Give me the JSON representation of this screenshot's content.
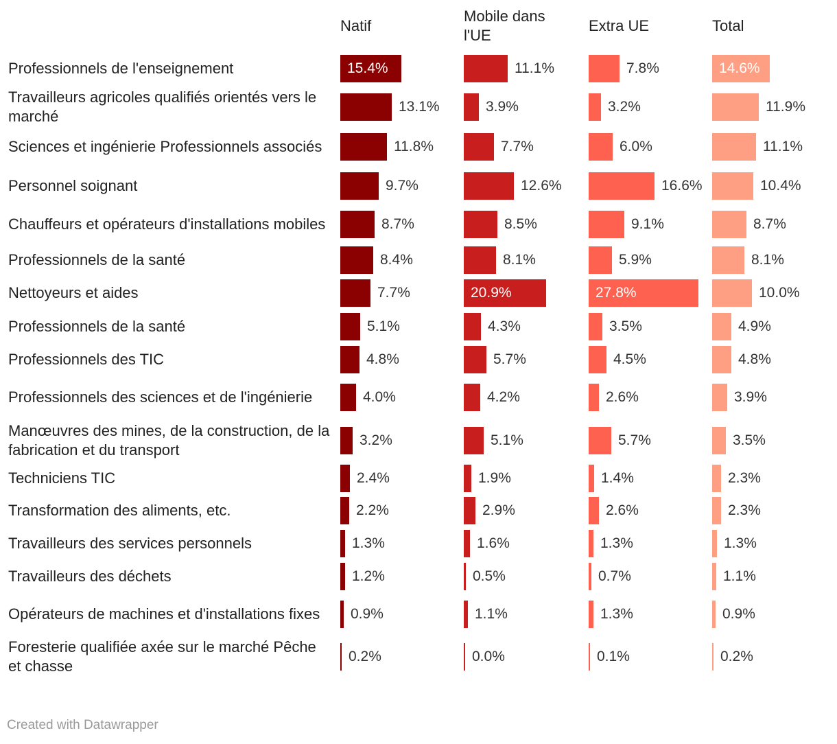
{
  "chart_data": {
    "type": "table",
    "columns": [
      {
        "name": "Natif",
        "color": "#8b0000"
      },
      {
        "name": "Mobile dans l'UE",
        "color": "#c81e1e"
      },
      {
        "name": "Extra UE",
        "color": "#fe6150"
      },
      {
        "name": "Total",
        "color": "#fe9e82"
      }
    ],
    "rows": [
      {
        "label": "Professionnels de l'enseignement",
        "values": [
          15.4,
          11.1,
          7.8,
          14.6
        ],
        "labels": [
          "15.4%",
          "11.1%",
          "7.8%",
          "14.6%"
        ]
      },
      {
        "label": "Travailleurs agricoles qualifiés orientés vers le marché",
        "values": [
          13.1,
          3.9,
          3.2,
          11.9
        ],
        "labels": [
          "13.1%",
          "3.9%",
          "3.2%",
          "11.9%"
        ]
      },
      {
        "label": "Sciences et ingénierie Professionnels associés",
        "values": [
          11.8,
          7.7,
          6.0,
          11.1
        ],
        "labels": [
          "11.8%",
          "7.7%",
          "6.0%",
          "11.1%"
        ]
      },
      {
        "label": "Personnel soignant",
        "values": [
          9.7,
          12.6,
          16.6,
          10.4
        ],
        "labels": [
          "9.7%",
          "12.6%",
          "16.6%",
          "10.4%"
        ]
      },
      {
        "label": "Chauffeurs et opérateurs d'installations mobiles",
        "values": [
          8.7,
          8.5,
          9.1,
          8.7
        ],
        "labels": [
          "8.7%",
          "8.5%",
          "9.1%",
          "8.7%"
        ]
      },
      {
        "label": "Professionnels de la santé",
        "values": [
          8.4,
          8.1,
          5.9,
          8.1
        ],
        "labels": [
          "8.4%",
          "8.1%",
          "5.9%",
          "8.1%"
        ]
      },
      {
        "label": "Nettoyeurs et aides",
        "values": [
          7.7,
          20.9,
          27.8,
          10.0
        ],
        "labels": [
          "7.7%",
          "20.9%",
          "27.8%",
          "10.0%"
        ]
      },
      {
        "label": "Professionnels de la santé",
        "values": [
          5.1,
          4.3,
          3.5,
          4.9
        ],
        "labels": [
          "5.1%",
          "4.3%",
          "3.5%",
          "4.9%"
        ]
      },
      {
        "label": "Professionnels des TIC",
        "values": [
          4.8,
          5.7,
          4.5,
          4.8
        ],
        "labels": [
          "4.8%",
          "5.7%",
          "4.5%",
          "4.8%"
        ]
      },
      {
        "label": "Professionnels des sciences et de l'ingénierie",
        "values": [
          4.0,
          4.2,
          2.6,
          3.9
        ],
        "labels": [
          "4.0%",
          "4.2%",
          "2.6%",
          "3.9%"
        ]
      },
      {
        "label": "Manœuvres des mines, de la construction, de la fabrication et du transport",
        "values": [
          3.2,
          5.1,
          5.7,
          3.5
        ],
        "labels": [
          "3.2%",
          "5.1%",
          "5.7%",
          "3.5%"
        ]
      },
      {
        "label": "Techniciens TIC",
        "values": [
          2.4,
          1.9,
          1.4,
          2.3
        ],
        "labels": [
          "2.4%",
          "1.9%",
          "1.4%",
          "2.3%"
        ]
      },
      {
        "label": "Transformation des aliments, etc.",
        "values": [
          2.2,
          2.9,
          2.6,
          2.3
        ],
        "labels": [
          "2.2%",
          "2.9%",
          "2.6%",
          "2.3%"
        ]
      },
      {
        "label": "Travailleurs des services personnels",
        "values": [
          1.3,
          1.6,
          1.3,
          1.3
        ],
        "labels": [
          "1.3%",
          "1.6%",
          "1.3%",
          "1.3%"
        ]
      },
      {
        "label": "Travailleurs des déchets",
        "values": [
          1.2,
          0.5,
          0.7,
          1.1
        ],
        "labels": [
          "1.2%",
          "0.5%",
          "0.7%",
          "1.1%"
        ]
      },
      {
        "label": "Opérateurs de machines et d'installations fixes",
        "values": [
          0.9,
          1.1,
          1.3,
          0.9
        ],
        "labels": [
          "0.9%",
          "1.1%",
          "1.3%",
          "0.9%"
        ]
      },
      {
        "label": "Foresterie qualifiée axée sur le marché Pêche et chasse",
        "values": [
          0.2,
          0.0,
          0.1,
          0.2
        ],
        "labels": [
          "0.2%",
          "0.0%",
          "0.1%",
          "0.2%"
        ]
      }
    ]
  },
  "footer": "Created with Datawrapper"
}
